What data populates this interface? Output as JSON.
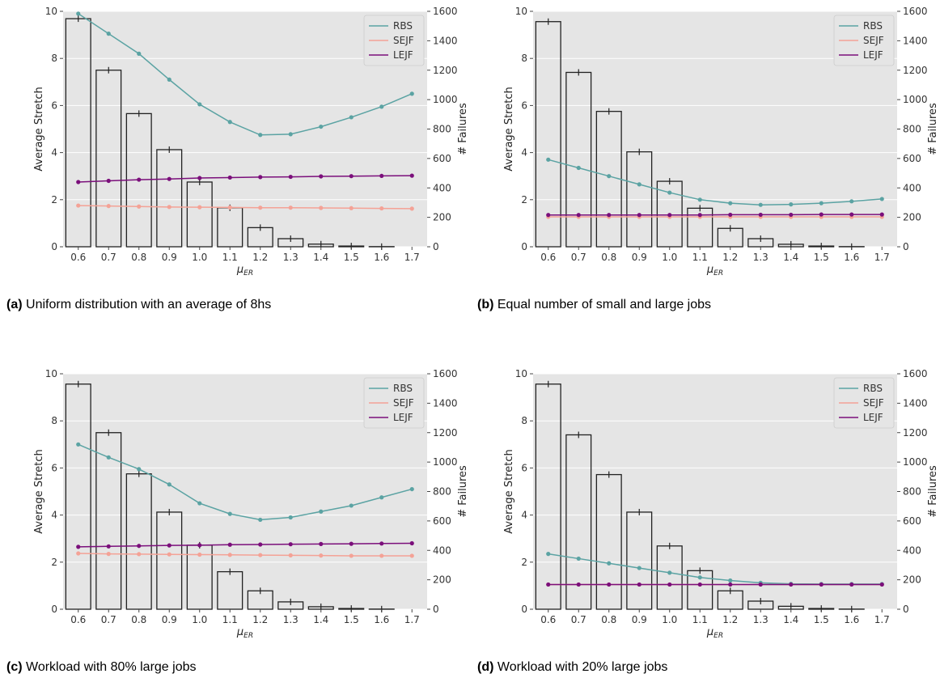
{
  "figure": {
    "captions": [
      {
        "tag": "(a)",
        "text": " Uniform distribution with an average of 8hs"
      },
      {
        "tag": "(b)",
        "text": " Equal number of small and large jobs"
      },
      {
        "tag": "(c)",
        "text": " Workload with 80% large jobs"
      },
      {
        "tag": "(d)",
        "text": " Workload with 20% large jobs"
      }
    ]
  },
  "chart_data": [
    {
      "type": "bar",
      "xlabel": "μ_ER",
      "ylabel": "Average Stretch",
      "y2label": "# Failures",
      "categories": [
        "0.6",
        "0.7",
        "0.8",
        "0.9",
        "1.0",
        "1.1",
        "1.2",
        "1.3",
        "1.4",
        "1.5",
        "1.6",
        "1.7"
      ],
      "ylim": [
        0,
        10
      ],
      "y2lim": [
        0,
        1600
      ],
      "yticks": [
        "0",
        "2",
        "4",
        "6",
        "8",
        "10"
      ],
      "y2ticks": [
        "0",
        "200",
        "400",
        "600",
        "800",
        "1000",
        "1200",
        "1400",
        "1600"
      ],
      "bars": {
        "axis": "y2",
        "values": [
          1550,
          1200,
          905,
          660,
          440,
          265,
          130,
          55,
          18,
          5,
          1,
          0
        ]
      },
      "series": [
        {
          "name": "RBS",
          "color": "#5ba3a3",
          "values": [
            9.9,
            9.05,
            8.2,
            7.1,
            6.05,
            5.3,
            4.75,
            4.78,
            5.1,
            5.5,
            5.95,
            6.5
          ]
        },
        {
          "name": "SEJF",
          "color": "#f4a296",
          "values": [
            1.75,
            1.73,
            1.71,
            1.69,
            1.68,
            1.67,
            1.66,
            1.66,
            1.65,
            1.64,
            1.63,
            1.62
          ]
        },
        {
          "name": "LEJF",
          "color": "#7b0f7b",
          "values": [
            2.75,
            2.8,
            2.85,
            2.88,
            2.92,
            2.94,
            2.96,
            2.97,
            2.99,
            3.0,
            3.01,
            3.02
          ]
        }
      ],
      "legend": "top-right",
      "grid": true
    },
    {
      "type": "bar",
      "xlabel": "μ_ER",
      "ylabel": "Average Stretch",
      "y2label": "# Failures",
      "categories": [
        "0.6",
        "0.7",
        "0.8",
        "0.9",
        "1.0",
        "1.1",
        "1.2",
        "1.3",
        "1.4",
        "1.5",
        "1.6",
        "1.7"
      ],
      "ylim": [
        0,
        10
      ],
      "y2lim": [
        0,
        1600
      ],
      "yticks": [
        "0",
        "2",
        "4",
        "6",
        "8",
        "10"
      ],
      "y2ticks": [
        "0",
        "200",
        "400",
        "600",
        "800",
        "1000",
        "1200",
        "1400",
        "1600"
      ],
      "bars": {
        "axis": "y2",
        "values": [
          1530,
          1185,
          920,
          645,
          445,
          262,
          125,
          55,
          17,
          5,
          1,
          0
        ]
      },
      "series": [
        {
          "name": "RBS",
          "color": "#5ba3a3",
          "values": [
            3.7,
            3.35,
            3.0,
            2.65,
            2.3,
            2.0,
            1.85,
            1.78,
            1.8,
            1.85,
            1.93,
            2.03
          ]
        },
        {
          "name": "SEJF",
          "color": "#f4a296",
          "values": [
            1.27,
            1.27,
            1.27,
            1.27,
            1.27,
            1.27,
            1.27,
            1.27,
            1.27,
            1.27,
            1.27,
            1.27
          ]
        },
        {
          "name": "LEJF",
          "color": "#7b0f7b",
          "values": [
            1.35,
            1.35,
            1.35,
            1.35,
            1.35,
            1.35,
            1.36,
            1.36,
            1.36,
            1.37,
            1.37,
            1.37
          ]
        }
      ],
      "legend": "top-right",
      "grid": true
    },
    {
      "type": "bar",
      "xlabel": "μ_ER",
      "ylabel": "Average Stretch",
      "y2label": "# Failures",
      "categories": [
        "0.6",
        "0.7",
        "0.8",
        "0.9",
        "1.0",
        "1.1",
        "1.2",
        "1.3",
        "1.4",
        "1.5",
        "1.6",
        "1.7"
      ],
      "ylim": [
        0,
        10
      ],
      "y2lim": [
        0,
        1600
      ],
      "yticks": [
        "0",
        "2",
        "4",
        "6",
        "8",
        "10"
      ],
      "y2ticks": [
        "0",
        "200",
        "400",
        "600",
        "800",
        "1000",
        "1200",
        "1400",
        "1600"
      ],
      "bars": {
        "axis": "y2",
        "values": [
          1530,
          1200,
          920,
          660,
          435,
          255,
          125,
          50,
          17,
          5,
          1,
          0
        ]
      },
      "series": [
        {
          "name": "RBS",
          "color": "#5ba3a3",
          "values": [
            7.0,
            6.45,
            5.95,
            5.3,
            4.5,
            4.05,
            3.8,
            3.9,
            4.15,
            4.4,
            4.75,
            5.1
          ]
        },
        {
          "name": "SEJF",
          "color": "#f4a296",
          "values": [
            2.37,
            2.35,
            2.34,
            2.33,
            2.32,
            2.31,
            2.3,
            2.29,
            2.28,
            2.27,
            2.27,
            2.27
          ]
        },
        {
          "name": "LEJF",
          "color": "#7b0f7b",
          "values": [
            2.65,
            2.67,
            2.69,
            2.71,
            2.72,
            2.74,
            2.75,
            2.76,
            2.77,
            2.78,
            2.79,
            2.8
          ]
        }
      ],
      "legend": "top-right",
      "grid": true
    },
    {
      "type": "bar",
      "xlabel": "μ_ER",
      "ylabel": "Average Stretch",
      "y2label": "# Failures",
      "categories": [
        "0.6",
        "0.7",
        "0.8",
        "0.9",
        "1.0",
        "1.1",
        "1.2",
        "1.3",
        "1.4",
        "1.5",
        "1.6",
        "1.7"
      ],
      "ylim": [
        0,
        10
      ],
      "y2lim": [
        0,
        1600
      ],
      "yticks": [
        "0",
        "2",
        "4",
        "6",
        "8",
        "10"
      ],
      "y2ticks": [
        "0",
        "200",
        "400",
        "600",
        "800",
        "1000",
        "1200",
        "1400",
        "1600"
      ],
      "bars": {
        "axis": "y2",
        "values": [
          1530,
          1185,
          915,
          660,
          430,
          262,
          125,
          55,
          20,
          5,
          1,
          0
        ]
      },
      "series": [
        {
          "name": "RBS",
          "color": "#5ba3a3",
          "values": [
            2.35,
            2.15,
            1.95,
            1.75,
            1.55,
            1.35,
            1.22,
            1.12,
            1.08,
            1.07,
            1.07,
            1.07
          ]
        },
        {
          "name": "SEJF",
          "color": "#f4a296",
          "values": [
            1.05,
            1.05,
            1.05,
            1.05,
            1.05,
            1.05,
            1.05,
            1.05,
            1.05,
            1.05,
            1.05,
            1.05
          ]
        },
        {
          "name": "LEJF",
          "color": "#7b0f7b",
          "values": [
            1.05,
            1.05,
            1.05,
            1.05,
            1.05,
            1.05,
            1.05,
            1.05,
            1.05,
            1.05,
            1.05,
            1.05
          ]
        }
      ],
      "legend": "top-right",
      "grid": true
    }
  ]
}
